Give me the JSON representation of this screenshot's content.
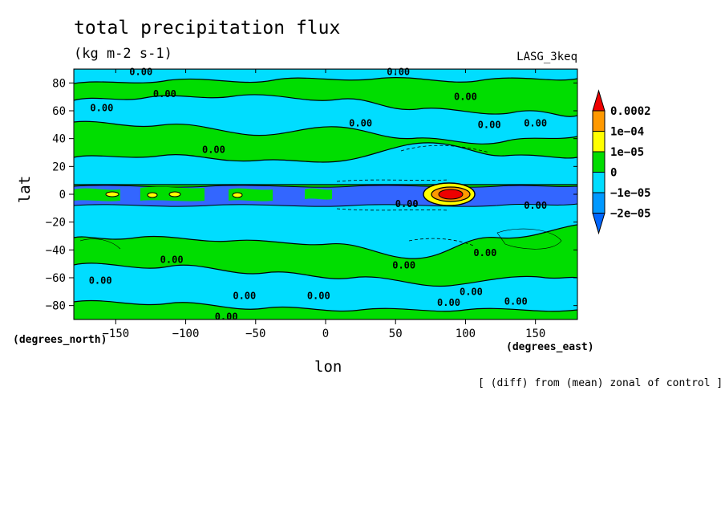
{
  "chart_data": {
    "type": "heatmap",
    "title": "total precipitation flux",
    "units_label": "(kg m-2 s-1)",
    "model_label": "LASG_3keq",
    "xlabel": "lon",
    "ylabel": "lat",
    "x_units": "(degrees_east)",
    "y_units": "(degrees_north)",
    "note": "[ (diff) from (mean) zonal of control ]",
    "xlim": [
      -180,
      180
    ],
    "ylim": [
      -90,
      90
    ],
    "x_ticks": [
      -150,
      -100,
      -50,
      0,
      50,
      100,
      150
    ],
    "y_ticks": [
      80,
      60,
      40,
      20,
      0,
      -20,
      -40,
      -60,
      -80
    ],
    "x_tick_labels": [
      "−150",
      "−100",
      "−50",
      "0",
      "50",
      "100",
      "150"
    ],
    "y_tick_labels": [
      "80",
      "60",
      "40",
      "20",
      "0",
      "−20",
      "−40",
      "−60",
      "−80"
    ],
    "legend": {
      "placement": "right",
      "labels": [
        "0.0002",
        "1e−04",
        "1e−05",
        "0",
        "−1e−05",
        "−2e−05"
      ],
      "colors": [
        "#ee0000",
        "#ff9900",
        "#ffff00",
        "#00dd00",
        "#00ddff",
        "#0099ff",
        "#0066ff"
      ]
    },
    "contour_labels": [
      {
        "text": "0.00",
        "lon": -132,
        "lat": 88
      },
      {
        "text": "0.00",
        "lon": 52,
        "lat": 88
      },
      {
        "text": "0.00",
        "lon": -115,
        "lat": 72
      },
      {
        "text": "0.00",
        "lon": 100,
        "lat": 70
      },
      {
        "text": "0.00",
        "lon": -160,
        "lat": 62
      },
      {
        "text": "0.00",
        "lon": 25,
        "lat": 51
      },
      {
        "text": "0.00",
        "lon": 117,
        "lat": 50
      },
      {
        "text": "0.00",
        "lon": 150,
        "lat": 51
      },
      {
        "text": "0.00",
        "lon": -80,
        "lat": 32
      },
      {
        "text": "0.00",
        "lon": 58,
        "lat": -7
      },
      {
        "text": "0.00",
        "lon": 150,
        "lat": -8
      },
      {
        "text": "0.00",
        "lon": -110,
        "lat": -47
      },
      {
        "text": "0.00",
        "lon": 114,
        "lat": -42
      },
      {
        "text": "0.00",
        "lon": 56,
        "lat": -51
      },
      {
        "text": "0.00",
        "lon": -161,
        "lat": -62
      },
      {
        "text": "0.00",
        "lon": -58,
        "lat": -73
      },
      {
        "text": "0.00",
        "lon": -5,
        "lat": -73
      },
      {
        "text": "0.00",
        "lon": 104,
        "lat": -70
      },
      {
        "text": "0.00",
        "lon": 88,
        "lat": -78
      },
      {
        "text": "0.00",
        "lon": 136,
        "lat": -77
      },
      {
        "text": "0.00",
        "lon": -71,
        "lat": -88
      }
    ]
  }
}
